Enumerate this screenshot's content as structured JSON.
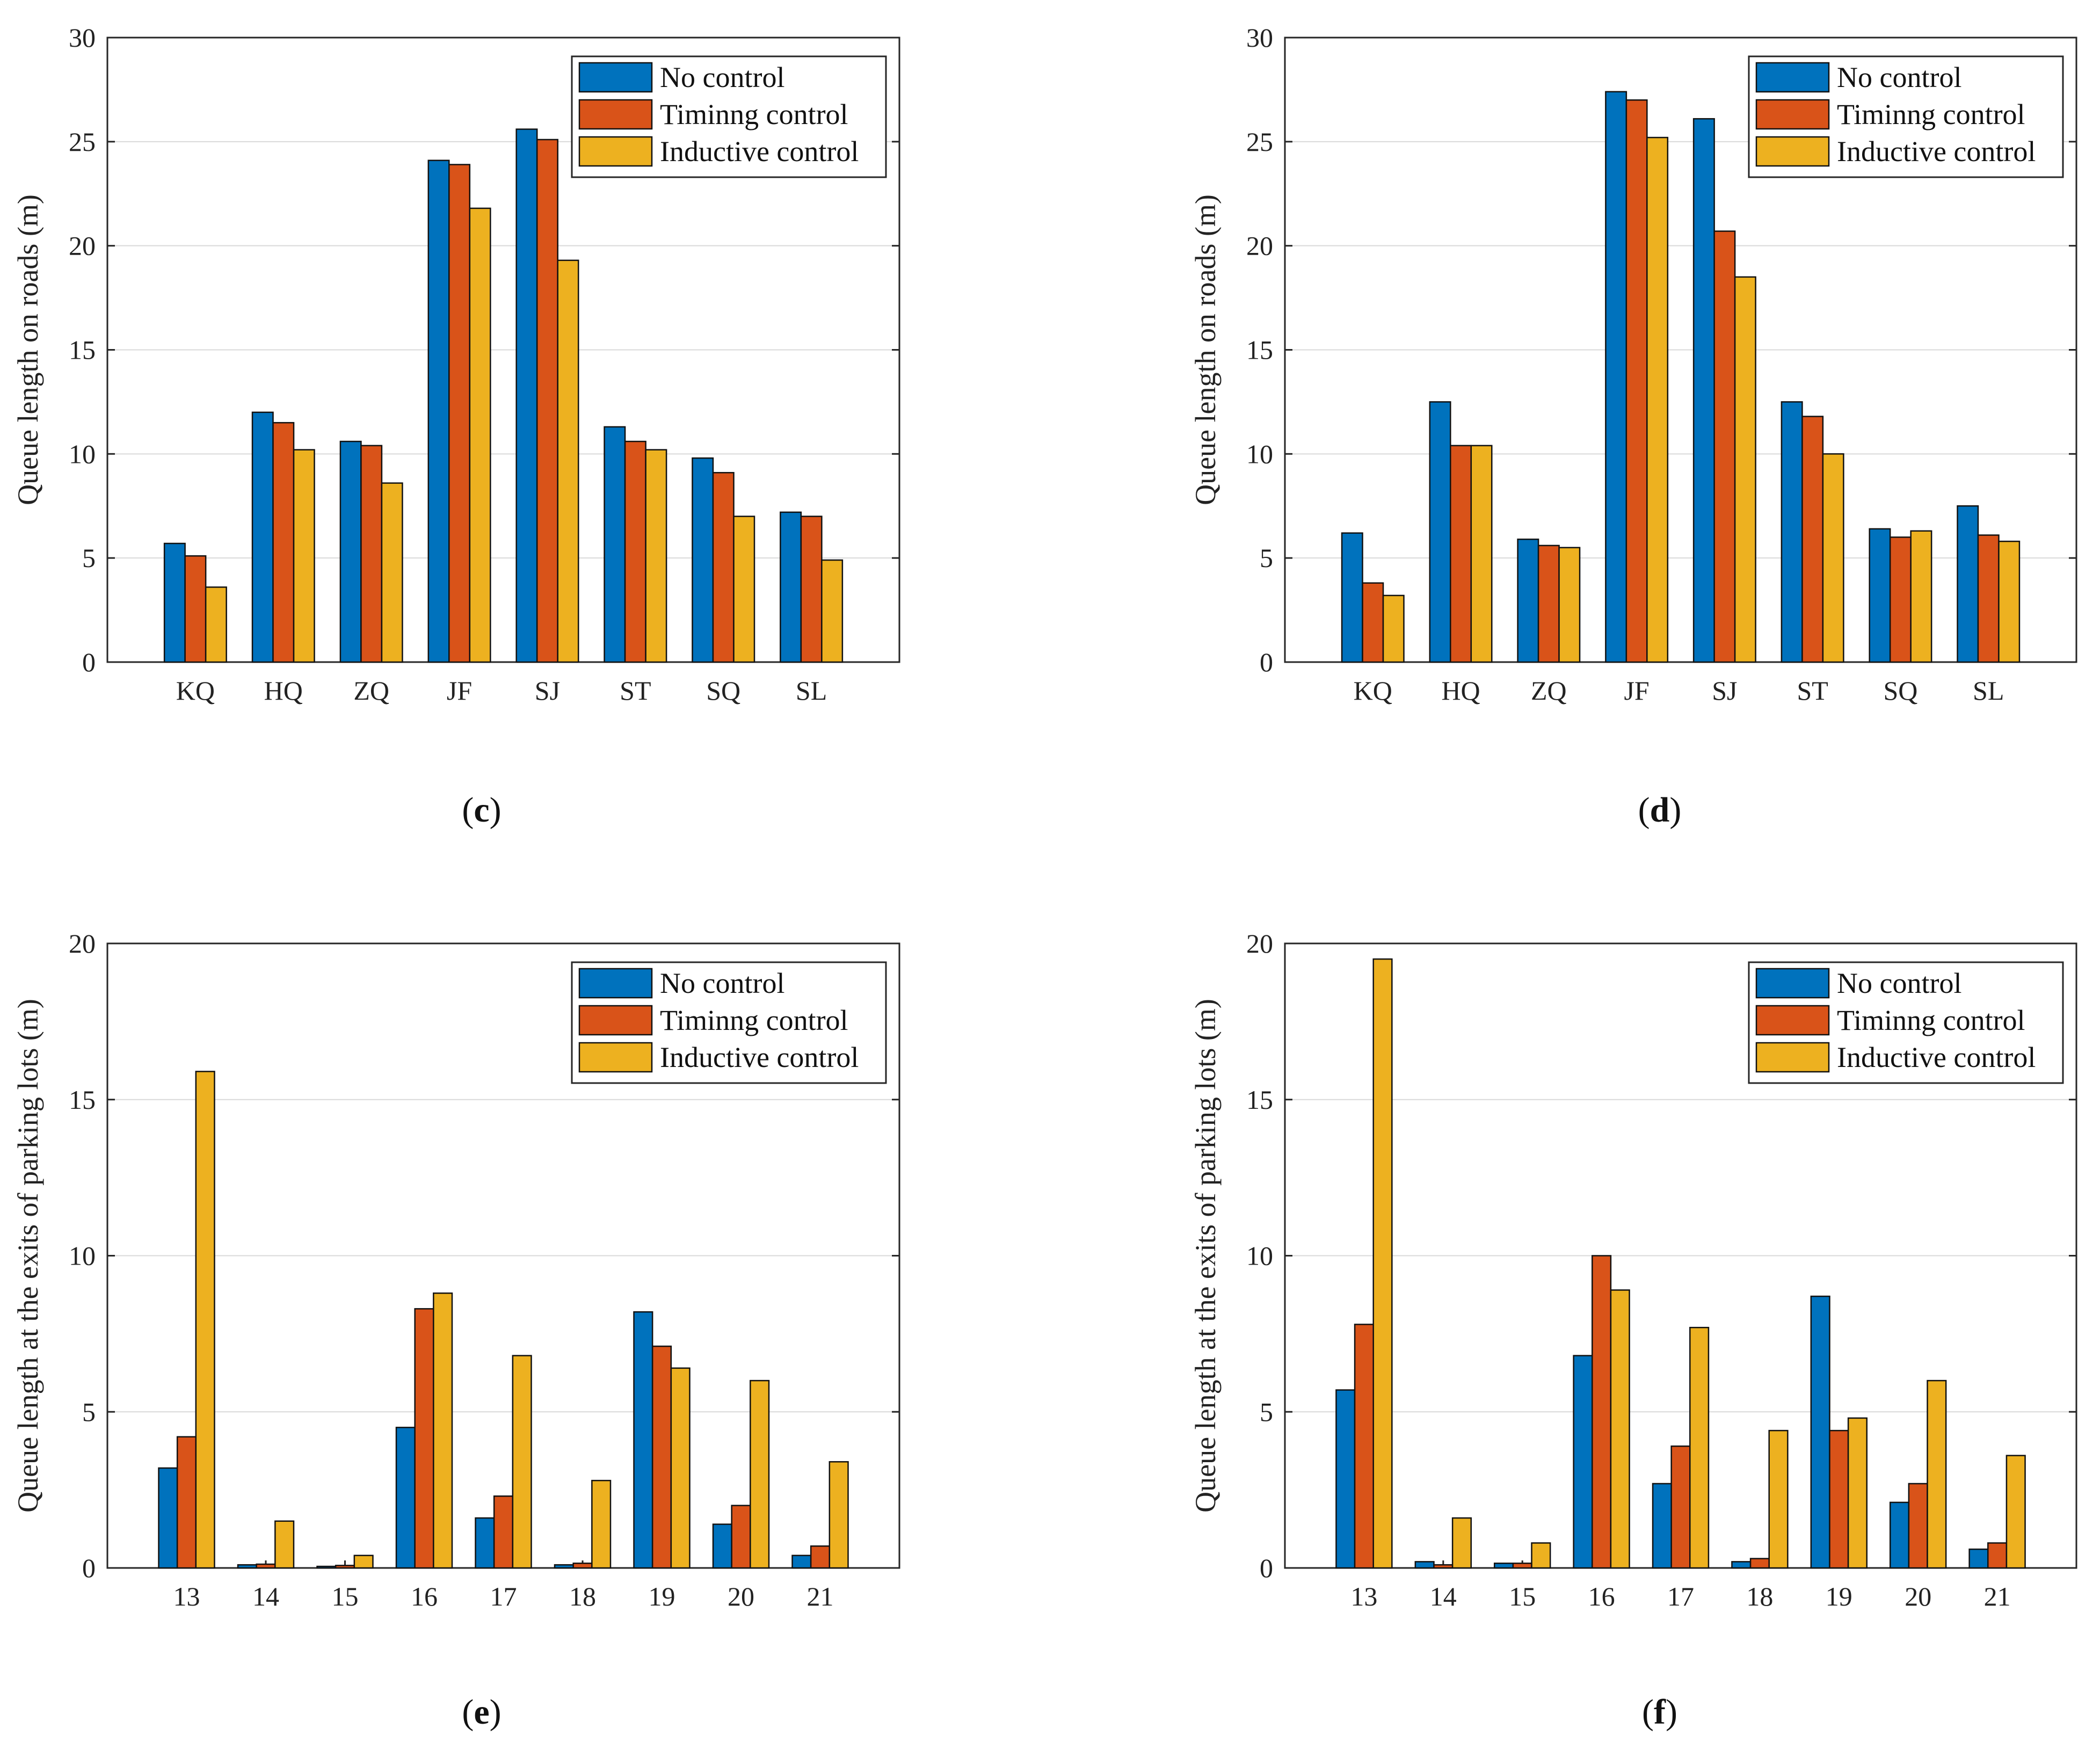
{
  "colors": {
    "no_control": "#0072BD",
    "timing_control": "#D95319",
    "inductive_control": "#EDB120"
  },
  "legend": [
    "No control",
    "Timinng control",
    "Inductive control"
  ],
  "chart_data": [
    {
      "panel": "c",
      "type": "bar",
      "ylabel": "Queue length on roads (m)",
      "ylim": [
        0,
        30
      ],
      "yticks": [
        "0",
        "5",
        "10",
        "15",
        "20",
        "25",
        "30"
      ],
      "categories": [
        "KQ",
        "HQ",
        "ZQ",
        "JF",
        "SJ",
        "ST",
        "SQ",
        "SL"
      ],
      "series": [
        {
          "name": "No control",
          "values": [
            5.7,
            12.0,
            10.6,
            24.1,
            25.6,
            11.3,
            9.8,
            7.2
          ]
        },
        {
          "name": "Timinng control",
          "values": [
            5.1,
            11.5,
            10.4,
            23.9,
            25.1,
            10.6,
            9.1,
            7.0
          ]
        },
        {
          "name": "Inductive control",
          "values": [
            3.6,
            10.2,
            8.6,
            21.8,
            19.3,
            10.2,
            7.0,
            4.9
          ]
        }
      ],
      "legend_position": "top-right"
    },
    {
      "panel": "d",
      "type": "bar",
      "ylabel": "Queue length on roads (m)",
      "ylim": [
        0,
        30
      ],
      "yticks": [
        "0",
        "5",
        "10",
        "15",
        "20",
        "25",
        "30"
      ],
      "categories": [
        "KQ",
        "HQ",
        "ZQ",
        "JF",
        "SJ",
        "ST",
        "SQ",
        "SL"
      ],
      "series": [
        {
          "name": "No control",
          "values": [
            6.2,
            12.5,
            5.9,
            27.4,
            26.1,
            12.5,
            6.4,
            7.5
          ]
        },
        {
          "name": "Timinng control",
          "values": [
            3.8,
            10.4,
            5.6,
            27.0,
            20.7,
            11.8,
            6.0,
            6.1
          ]
        },
        {
          "name": "Inductive control",
          "values": [
            3.2,
            10.4,
            5.5,
            25.2,
            18.5,
            10.0,
            6.3,
            5.8
          ]
        }
      ],
      "legend_position": "top-right"
    },
    {
      "panel": "e",
      "type": "bar",
      "ylabel": "Queue length at the exits of parking lots (m)",
      "ylim": [
        0,
        20
      ],
      "yticks": [
        "0",
        "5",
        "10",
        "15",
        "20"
      ],
      "categories": [
        "13",
        "14",
        "15",
        "16",
        "17",
        "18",
        "19",
        "20",
        "21"
      ],
      "series": [
        {
          "name": "No control",
          "values": [
            3.2,
            0.1,
            0.05,
            4.5,
            1.6,
            0.1,
            8.2,
            1.4,
            0.4
          ]
        },
        {
          "name": "Timinng control",
          "values": [
            4.2,
            0.12,
            0.08,
            8.3,
            2.3,
            0.15,
            7.1,
            2.0,
            0.7
          ]
        },
        {
          "name": "Inductive control",
          "values": [
            15.9,
            1.5,
            0.4,
            8.8,
            6.8,
            2.8,
            6.4,
            6.0,
            3.4
          ]
        }
      ],
      "legend_position": "top-right"
    },
    {
      "panel": "f",
      "type": "bar",
      "ylabel": "Queue length at the exits of parking lots (m)",
      "ylim": [
        0,
        20
      ],
      "yticks": [
        "0",
        "5",
        "10",
        "15",
        "20"
      ],
      "categories": [
        "13",
        "14",
        "15",
        "16",
        "17",
        "18",
        "19",
        "20",
        "21"
      ],
      "series": [
        {
          "name": "No control",
          "values": [
            5.7,
            0.2,
            0.15,
            6.8,
            2.7,
            0.2,
            8.7,
            2.1,
            0.6
          ]
        },
        {
          "name": "Timinng control",
          "values": [
            7.8,
            0.1,
            0.15,
            10.0,
            3.9,
            0.3,
            4.4,
            2.7,
            0.8
          ]
        },
        {
          "name": "Inductive control",
          "values": [
            19.5,
            1.6,
            0.8,
            8.9,
            7.7,
            4.4,
            4.8,
            6.0,
            3.6
          ]
        }
      ],
      "legend_position": "top-right"
    }
  ]
}
